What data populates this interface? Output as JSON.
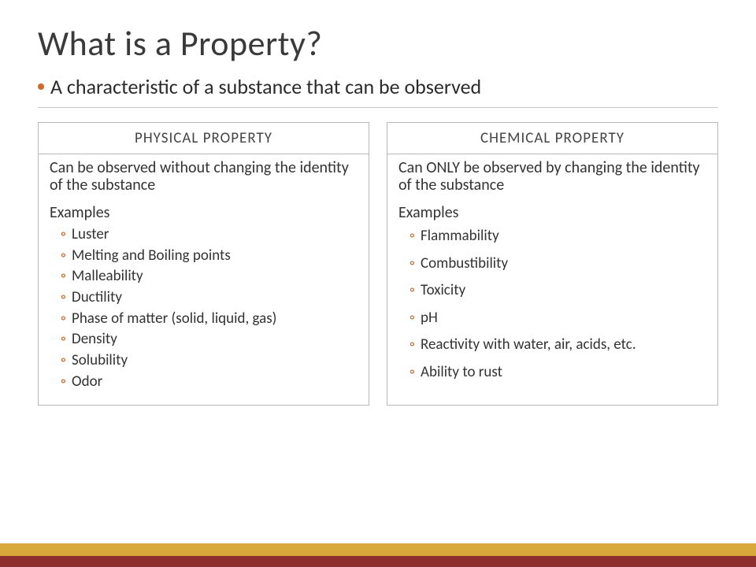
{
  "colors": {
    "accent_bullet": "#d06a2a",
    "sub_bullet": "#c05a18",
    "bar_red": "#8e2e2e",
    "bar_gold": "#d8a93a",
    "title_color": "#3a3a3a",
    "text_color": "#2f2f2f",
    "border_color": "#b8b8b8"
  },
  "title": "What is a Property?",
  "lead": "A characteristic of a substance that can be observed",
  "left": {
    "header": "PHYSICAL PROPERTY",
    "description": "Can be observed without changing the identity of the substance",
    "examples_label": "Examples",
    "examples": [
      "Luster",
      "Melting and Boiling points",
      "Malleability",
      "Ductility",
      "Phase of matter (solid, liquid, gas)",
      "Density",
      "Solubility",
      "Odor"
    ]
  },
  "right": {
    "header": "CHEMICAL PROPERTY",
    "description": "Can ONLY be observed by changing the identity of the substance",
    "examples_label": "Examples",
    "examples": [
      "Flammability",
      "Combustibility",
      "Toxicity",
      "pH",
      "Reactivity with water, air, acids, etc.",
      "Ability to rust"
    ]
  }
}
